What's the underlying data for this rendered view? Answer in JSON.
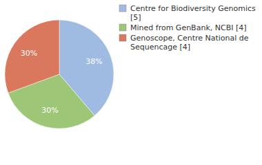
{
  "chart_data": {
    "type": "pie",
    "categories": [
      "Centre for Biodiversity Genomics [5]",
      "Mined from GenBank, NCBI [4]",
      "Genoscope, Centre National de Sequencage [4]"
    ],
    "values": [
      38,
      30,
      30
    ],
    "value_labels": [
      "38%",
      "30%",
      "30%"
    ],
    "colors": [
      "#9fbbe1",
      "#9ec677",
      "#d9785c"
    ],
    "data_labels": true,
    "legend": "top-right"
  }
}
